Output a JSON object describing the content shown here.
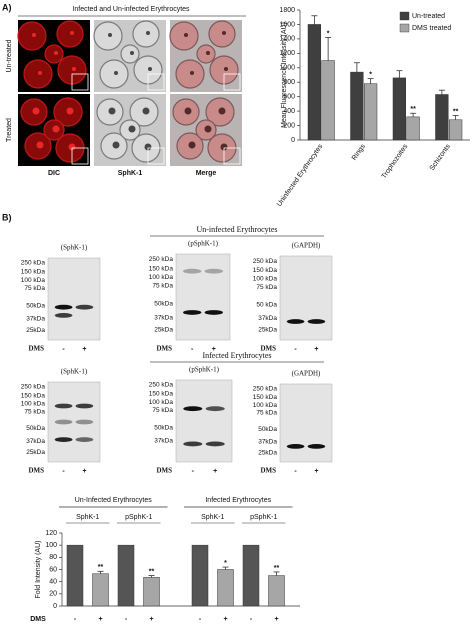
{
  "figure": {
    "panel_a": {
      "label": "A)",
      "title": "Infected and Un-infected Erythrocytes",
      "rows": [
        "Un-treated",
        "Treated"
      ],
      "columns": [
        "DIC",
        "SphK-1",
        "Merge"
      ]
    },
    "panel_b": {
      "label": "B)",
      "lanes": [
        "-",
        "+"
      ],
      "lane_label": "DMS",
      "sections": [
        {
          "title": "Un-infected Erythrocytes",
          "blots": [
            {
              "title": "(SphK-1)",
              "markers": [
                "250 kDa",
                "150 kDa",
                "100 kDa",
                "75 kDa",
                "50kDa",
                "37kDa",
                "25kDa"
              ]
            },
            {
              "title": "(pSphK-1)",
              "markers": [
                "250 kDa",
                "150 kDa",
                "100 kDa",
                "75 kDa",
                "50kDa",
                "37kDa",
                "25kDa"
              ]
            },
            {
              "title": "(GAPDH)",
              "markers": [
                "250 kDa",
                "150 kDa",
                "100 kDa",
                "75 kDa",
                "50 kDa",
                "37kDa",
                "25kDa"
              ]
            }
          ]
        },
        {
          "title": "Infected Erythrocytes",
          "blots": [
            {
              "title": "(SphK-1)",
              "markers": [
                "250 kDa",
                "150 kDa",
                "100 kDa",
                "75 kDa",
                "50kDa",
                "37kDa",
                "25kDa"
              ]
            },
            {
              "title": "(pSphK-1)",
              "markers": [
                "250 kDa",
                "150 kDa",
                "100 kDa",
                "75 kDa",
                "50kDa",
                "37kDa"
              ]
            },
            {
              "title": "(GAPDH)",
              "markers": [
                "250 kDa",
                "150 kDa",
                "100 kDa",
                "75 kDa",
                "50kDa",
                "37kDa",
                "25kDa"
              ]
            }
          ]
        }
      ]
    }
  },
  "chart_data": [
    {
      "type": "bar",
      "ylabel": "Mean Fluorescence Intensity (AU)",
      "categories": [
        "Uninfected Erythrocytes",
        "Rings",
        "Trophozoites",
        "Schizonts"
      ],
      "series": [
        {
          "name": "Un-treated",
          "color": "#3f3f3f",
          "values": [
            1600,
            940,
            860,
            630
          ],
          "errors": [
            120,
            130,
            100,
            60
          ]
        },
        {
          "name": "DMS treated",
          "color": "#a6a6a6",
          "values": [
            1100,
            780,
            320,
            280
          ],
          "errors": [
            320,
            70,
            50,
            60
          ],
          "annotations": [
            "*",
            "*",
            "**",
            "**"
          ]
        }
      ],
      "ylim": [
        0,
        1800
      ],
      "yticks": [
        0,
        200,
        400,
        600,
        800,
        1000,
        1200,
        1400,
        1600,
        1800
      ],
      "legend": "upper right"
    },
    {
      "type": "bar",
      "ylabel": "Fold Intensity (AU)",
      "xlabel": "DMS",
      "groups": [
        {
          "title": "Un-Infected Erythrocytes",
          "subgroups": [
            "SphK-1",
            "pSphK-1"
          ]
        },
        {
          "title": "Infected Erythrocytes",
          "subgroups": [
            "SphK-1",
            "pSphK-1"
          ]
        }
      ],
      "categories": [
        "-",
        "+",
        "-",
        "+",
        "-",
        "+",
        "-",
        "+"
      ],
      "values": [
        100,
        53,
        100,
        47,
        100,
        60,
        100,
        50
      ],
      "errors": [
        null,
        4,
        null,
        3,
        null,
        4,
        null,
        6
      ],
      "annotations": [
        null,
        "**",
        null,
        "**",
        null,
        "*",
        null,
        "**"
      ],
      "colors": [
        "#555555",
        "#a6a6a6",
        "#555555",
        "#a6a6a6",
        "#555555",
        "#a6a6a6",
        "#555555",
        "#a6a6a6"
      ],
      "ylim": [
        0,
        120
      ],
      "yticks": [
        0,
        20,
        40,
        60,
        80,
        100,
        120
      ]
    }
  ]
}
